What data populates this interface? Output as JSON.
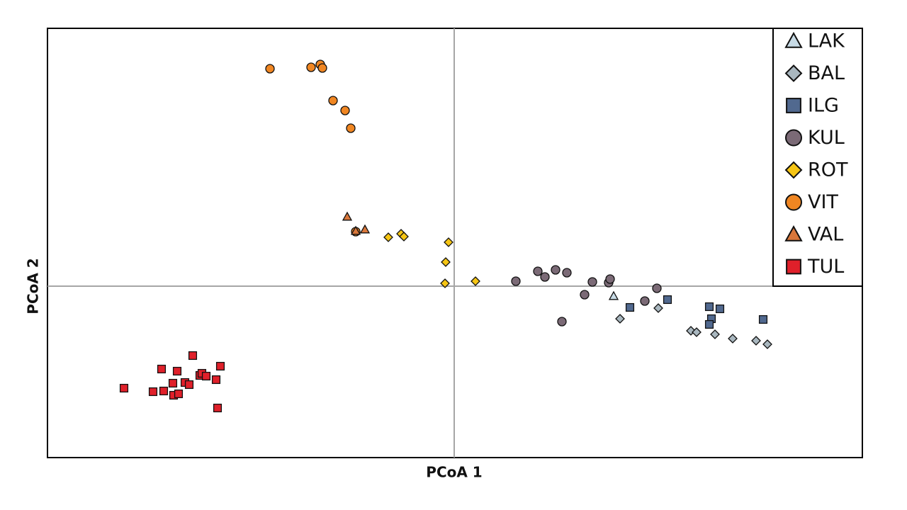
{
  "chart_data": {
    "type": "scatter",
    "x_label": "PCoA 1",
    "y_label": "PCoA 2",
    "xlim": [
      -5.74,
      5.76
    ],
    "ylim": [
      -2.42,
      3.64
    ],
    "legend": "upper right",
    "series": [
      {
        "name": "LAK",
        "color": "#c8dbe6",
        "marker": "triangle",
        "x": [
          2.25
        ],
        "y": [
          -0.14
        ]
      },
      {
        "name": "BAL",
        "color": "#a9b7bf",
        "marker": "diamond",
        "x": [
          2.34,
          2.88,
          3.34,
          3.42,
          3.68,
          3.93,
          4.26,
          4.42
        ],
        "y": [
          -0.46,
          -0.31,
          -0.63,
          -0.65,
          -0.68,
          -0.74,
          -0.77,
          -0.82
        ]
      },
      {
        "name": "ILG",
        "color": "#51698f",
        "marker": "square",
        "x": [
          2.48,
          3.01,
          3.6,
          3.75,
          3.63,
          3.6,
          4.36
        ],
        "y": [
          -0.3,
          -0.19,
          -0.29,
          -0.32,
          -0.46,
          -0.54,
          -0.47
        ]
      },
      {
        "name": "KUL",
        "color": "#7b6a76",
        "marker": "circle",
        "x": [
          0.87,
          1.18,
          1.28,
          1.43,
          1.59,
          1.84,
          1.95,
          2.18,
          2.2,
          2.69,
          2.86,
          1.52
        ],
        "y": [
          0.07,
          0.21,
          0.13,
          0.23,
          0.19,
          -0.12,
          0.06,
          0.05,
          0.1,
          -0.21,
          -0.03,
          -0.5
        ]
      },
      {
        "name": "ROT",
        "color": "#f6c514",
        "marker": "diamond",
        "x": [
          -0.93,
          -0.75,
          -0.71,
          -0.08,
          -0.12,
          -0.13,
          0.3
        ],
        "y": [
          0.69,
          0.74,
          0.7,
          0.62,
          0.34,
          0.04,
          0.07
        ]
      },
      {
        "name": "VIT",
        "color": "#f08622",
        "marker": "circle",
        "x": [
          -2.6,
          -2.02,
          -1.89,
          -1.86,
          -1.71,
          -1.54,
          -1.46,
          -1.39
        ],
        "y": [
          3.07,
          3.09,
          3.13,
          3.08,
          2.62,
          2.48,
          2.23,
          0.77
        ]
      },
      {
        "name": "VAL",
        "color": "#d9773b",
        "marker": "triangle",
        "x": [
          -1.51,
          -1.26,
          -1.39
        ],
        "y": [
          0.98,
          0.8,
          0.78
        ]
      },
      {
        "name": "TUL",
        "color": "#e0202a",
        "marker": "square",
        "x": [
          -4.66,
          -4.25,
          -4.13,
          -4.1,
          -3.97,
          -3.96,
          -3.91,
          -3.89,
          -3.8,
          -3.74,
          -3.69,
          -3.59,
          -3.56,
          -3.5,
          -3.36,
          -3.3,
          -3.34
        ],
        "y": [
          -1.44,
          -1.49,
          -1.17,
          -1.48,
          -1.37,
          -1.54,
          -1.2,
          -1.52,
          -1.36,
          -1.39,
          -0.98,
          -1.26,
          -1.23,
          -1.27,
          -1.32,
          -1.13,
          -1.72
        ]
      }
    ]
  }
}
